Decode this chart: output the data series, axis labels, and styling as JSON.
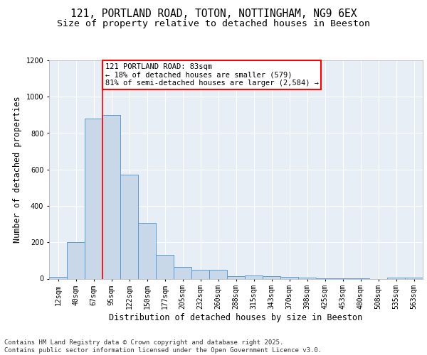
{
  "title_line1": "121, PORTLAND ROAD, TOTON, NOTTINGHAM, NG9 6EX",
  "title_line2": "Size of property relative to detached houses in Beeston",
  "xlabel": "Distribution of detached houses by size in Beeston",
  "ylabel": "Number of detached properties",
  "categories": [
    "12sqm",
    "40sqm",
    "67sqm",
    "95sqm",
    "122sqm",
    "150sqm",
    "177sqm",
    "205sqm",
    "232sqm",
    "260sqm",
    "288sqm",
    "315sqm",
    "343sqm",
    "370sqm",
    "398sqm",
    "425sqm",
    "453sqm",
    "480sqm",
    "508sqm",
    "535sqm",
    "563sqm"
  ],
  "values": [
    10,
    200,
    880,
    900,
    570,
    305,
    130,
    65,
    48,
    47,
    15,
    18,
    15,
    10,
    5,
    3,
    2,
    1,
    0,
    5,
    5
  ],
  "bar_color": "#c8d8e8",
  "bar_edge_color": "#5b9bd5",
  "bar_edge_width": 0.7,
  "red_line_index": 2.5,
  "annotation_text": "121 PORTLAND ROAD: 83sqm\n← 18% of detached houses are smaller (579)\n81% of semi-detached houses are larger (2,584) →",
  "ylim": [
    0,
    1200
  ],
  "yticks": [
    0,
    200,
    400,
    600,
    800,
    1000,
    1200
  ],
  "background_color": "#e8eef5",
  "grid_color": "#ffffff",
  "footer_text": "Contains HM Land Registry data © Crown copyright and database right 2025.\nContains public sector information licensed under the Open Government Licence v3.0.",
  "title_fontsize": 10.5,
  "subtitle_fontsize": 9.5,
  "label_fontsize": 8.5,
  "tick_fontsize": 7,
  "annotation_fontsize": 7.5,
  "footer_fontsize": 6.5
}
